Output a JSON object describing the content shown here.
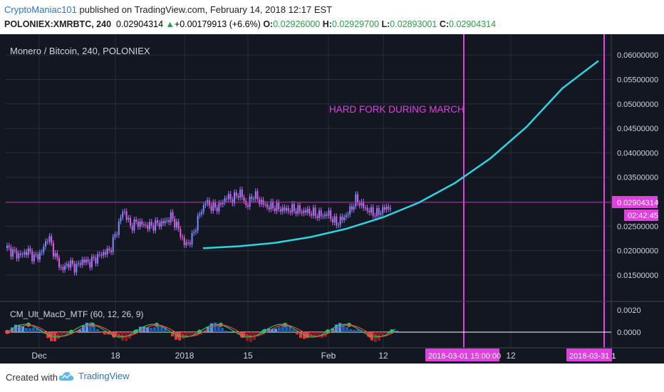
{
  "header": {
    "author": "CryptoManiac101",
    "published": "published on TradingView.com, February 14, 2018 12:17 EST",
    "symbol": "POLONIEX:XMRBTC, 240",
    "last": "0.02904314",
    "change": "+0.00179913 (+6.6%)",
    "o_label": "O:",
    "o_val": "0.02926000",
    "h_label": "H:",
    "h_val": "0.02929700",
    "l_label": "L:",
    "l_val": "0.02893001",
    "c_label": "C:",
    "c_val": "0.02904314"
  },
  "chart": {
    "title": "Monero / Bitcoin, 240, POLONIEX",
    "annotation": "HARD FORK DURING MARCH",
    "price_tag": "0.02904314",
    "countdown_tag": "02:42:45",
    "indicator_title": "CM_Ult_MacD_MTF (60, 12, 26, 9)",
    "date_tag_1": "2018-03-01 15:00:00",
    "date_tag_2": "2018-03-31 1",
    "colors": {
      "background": "#131722",
      "grid": "#2a2e39",
      "curve": "#2fd4e3",
      "vline": "#e040e0",
      "annotation": "#e040e0",
      "price_line": "#b1259b",
      "candle_up": "#7b8cff",
      "candle_down": "#e25be2"
    }
  },
  "chart_data": [
    {
      "type": "line",
      "title": "Monero / Bitcoin, 240, POLONIEX",
      "y_ticks": [
        "0.06000000",
        "0.05500000",
        "0.05000000",
        "0.04500000",
        "0.04000000",
        "0.03500000",
        "0.03000000",
        "0.02500000",
        "0.02000000",
        "0.01500000"
      ],
      "x_ticks": [
        "Dec",
        "18",
        "2018",
        "15",
        "Feb",
        "12",
        "12"
      ],
      "ylim": [
        0.0115,
        0.0625
      ],
      "series": [
        {
          "values": [
            0.0205,
            0.0195,
            0.019,
            0.02,
            0.0185,
            0.0195,
            0.023,
            0.019,
            0.016,
            0.0175,
            0.0165,
            0.018,
            0.0175,
            0.0185,
            0.0195,
            0.02,
            0.024,
            0.0285,
            0.025,
            0.0258,
            0.0252,
            0.025,
            0.0255,
            0.0258,
            0.027,
            0.0245,
            0.021,
            0.0225,
            0.027,
            0.03,
            0.0288,
            0.029,
            0.031,
            0.0305,
            0.032,
            0.029,
            0.0315,
            0.03,
            0.029,
            0.029,
            0.0285,
            0.0283,
            0.0285,
            0.028,
            0.028,
            0.0275,
            0.0272,
            0.0275,
            0.0255,
            0.0265,
            0.028,
            0.0305,
            0.029,
            0.028,
            0.0275,
            0.0285,
            0.029
          ]
        },
        {
          "values": [
            0.0205,
            0.0209,
            0.0216,
            0.0228,
            0.0245,
            0.0268,
            0.0298,
            0.0338,
            0.0389,
            0.0453,
            0.0532,
            0.0588
          ]
        }
      ]
    },
    {
      "type": "bar",
      "title": "CM_Ult_MacD_MTF (60, 12, 26, 9)",
      "y_ticks": [
        "0.0020",
        "0.0000"
      ]
    }
  ]
}
